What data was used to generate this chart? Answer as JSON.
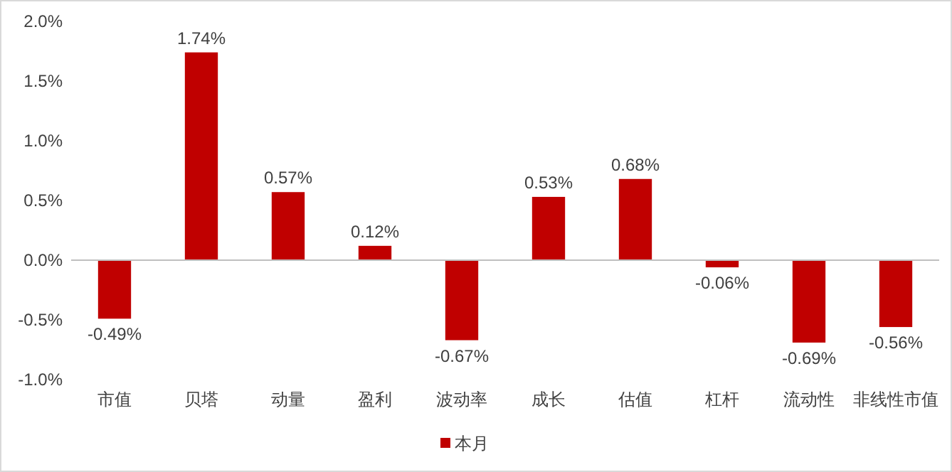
{
  "chart_data": {
    "type": "bar",
    "categories": [
      "市值",
      "贝塔",
      "动量",
      "盈利",
      "波动率",
      "成长",
      "估值",
      "杠杆",
      "流动性",
      "非线性市值"
    ],
    "series": [
      {
        "name": "本月",
        "color": "#c00000",
        "values": [
          -0.49,
          1.74,
          0.57,
          0.12,
          -0.67,
          0.53,
          0.68,
          -0.06,
          -0.69,
          -0.56
        ],
        "value_labels": [
          "-0.49%",
          "1.74%",
          "0.57%",
          "0.12%",
          "-0.67%",
          "0.53%",
          "0.68%",
          "-0.06%",
          "-0.69%",
          "-0.56%"
        ]
      }
    ],
    "ylim": [
      -1.0,
      2.0
    ],
    "yticks": [
      {
        "value": -1.0,
        "label": "-1.0%"
      },
      {
        "value": -0.5,
        "label": "-0.5%"
      },
      {
        "value": 0,
        "label": "0.0%"
      },
      {
        "value": 0.5,
        "label": "0.5%"
      },
      {
        "value": 1.0,
        "label": "1.0%"
      },
      {
        "value": 1.5,
        "label": "1.5%"
      },
      {
        "value": 2.0,
        "label": "2.0%"
      }
    ],
    "legend": "bottom"
  }
}
